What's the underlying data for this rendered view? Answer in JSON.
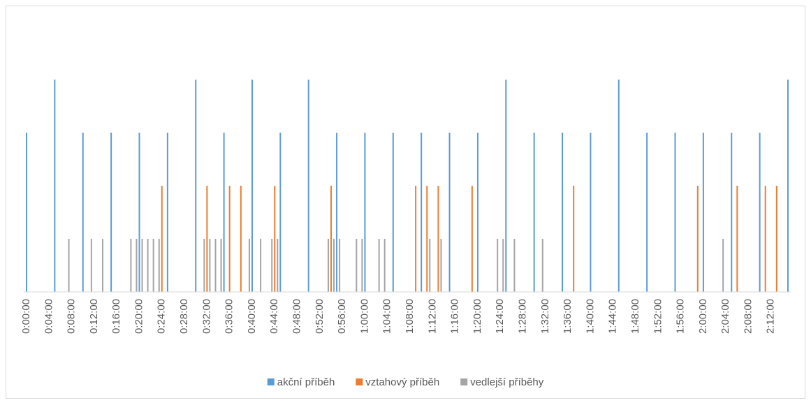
{
  "chart_data": {
    "type": "bar",
    "xlim": [
      0,
      135
    ],
    "ylim": [
      0,
      5
    ],
    "xticks": [
      {
        "value": 0,
        "label": "0:00:00"
      },
      {
        "value": 4,
        "label": "0:04:00"
      },
      {
        "value": 8,
        "label": "0:08:00"
      },
      {
        "value": 12,
        "label": "0:12:00"
      },
      {
        "value": 16,
        "label": "0:16:00"
      },
      {
        "value": 20,
        "label": "0:20:00"
      },
      {
        "value": 24,
        "label": "0:24:00"
      },
      {
        "value": 28,
        "label": "0:28:00"
      },
      {
        "value": 32,
        "label": "0:32:00"
      },
      {
        "value": 36,
        "label": "0:36:00"
      },
      {
        "value": 40,
        "label": "0:40:00"
      },
      {
        "value": 44,
        "label": "0:44:00"
      },
      {
        "value": 48,
        "label": "0:48:00"
      },
      {
        "value": 52,
        "label": "0:52:00"
      },
      {
        "value": 56,
        "label": "0:56:00"
      },
      {
        "value": 60,
        "label": "1:00:00"
      },
      {
        "value": 64,
        "label": "1:04:00"
      },
      {
        "value": 68,
        "label": "1:08:00"
      },
      {
        "value": 72,
        "label": "1:12:00"
      },
      {
        "value": 76,
        "label": "1:16:00"
      },
      {
        "value": 80,
        "label": "1:20:00"
      },
      {
        "value": 84,
        "label": "1:24:00"
      },
      {
        "value": 88,
        "label": "1:28:00"
      },
      {
        "value": 92,
        "label": "1:32:00"
      },
      {
        "value": 96,
        "label": "1:36:00"
      },
      {
        "value": 100,
        "label": "1:40:00"
      },
      {
        "value": 104,
        "label": "1:44:00"
      },
      {
        "value": 108,
        "label": "1:48:00"
      },
      {
        "value": 112,
        "label": "1:52:00"
      },
      {
        "value": 116,
        "label": "1:56:00"
      },
      {
        "value": 120,
        "label": "2:00:00"
      },
      {
        "value": 124,
        "label": "2:04:00"
      },
      {
        "value": 128,
        "label": "2:08:00"
      },
      {
        "value": 132,
        "label": "2:12:00"
      }
    ],
    "series": [
      {
        "name": "akční příběh",
        "color": "#5b9bd5",
        "x": [
          0,
          5,
          10,
          15,
          20,
          25,
          30,
          35,
          40,
          45,
          50,
          55,
          60,
          65,
          70,
          75,
          80,
          85,
          90,
          95,
          100,
          105,
          110,
          115,
          120,
          125,
          130,
          135
        ],
        "values": [
          3,
          4,
          3,
          3,
          3,
          3,
          4,
          3,
          4,
          3,
          4,
          3,
          3,
          3,
          3,
          3,
          3,
          4,
          3,
          3,
          3,
          4,
          3,
          3,
          3,
          3,
          3,
          4
        ]
      },
      {
        "name": "vztahový příběh",
        "color": "#ed7d31",
        "x": [
          24,
          32,
          36,
          38,
          44,
          54,
          69,
          71,
          73,
          79,
          97,
          119,
          126,
          131,
          133
        ],
        "values": [
          2,
          2,
          2,
          2,
          2,
          2,
          2,
          2,
          2,
          2,
          2,
          2,
          2,
          2,
          2
        ]
      },
      {
        "name": "vedlejší příběhy",
        "color": "#a5a5a5",
        "x": [
          7.5,
          11.5,
          13.5,
          18.5,
          19.5,
          20.5,
          21.5,
          22.5,
          23.5,
          31.5,
          32.5,
          33.5,
          34.5,
          39.5,
          41.5,
          43.5,
          44.5,
          53.5,
          54.5,
          55.5,
          58.5,
          59.5,
          62.5,
          63.5,
          71.5,
          73.5,
          83.5,
          84.5,
          86.5,
          91.5,
          123.5
        ],
        "values": [
          1,
          1,
          1,
          1,
          1,
          1,
          1,
          1,
          1,
          1,
          1,
          1,
          1,
          1,
          1,
          1,
          1,
          1,
          1,
          1,
          1,
          1,
          1,
          1,
          1,
          1,
          1,
          1,
          1,
          1,
          1
        ]
      }
    ],
    "legend": "bottom"
  }
}
